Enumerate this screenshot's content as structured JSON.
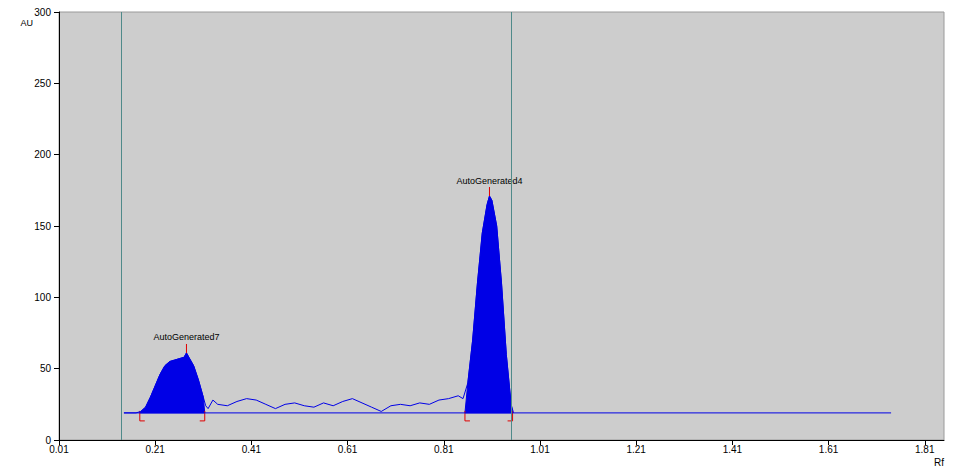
{
  "chart_data": {
    "type": "line",
    "x_label": "Rf",
    "y_label": "AU",
    "color": "#0000e6",
    "x": [
      0.145,
      0.17,
      0.18,
      0.19,
      0.2,
      0.21,
      0.22,
      0.23,
      0.24,
      0.25,
      0.26,
      0.27,
      0.275,
      0.28,
      0.29,
      0.3,
      0.31,
      0.315,
      0.32,
      0.33,
      0.34,
      0.36,
      0.38,
      0.4,
      0.42,
      0.44,
      0.46,
      0.48,
      0.5,
      0.52,
      0.54,
      0.56,
      0.58,
      0.6,
      0.62,
      0.64,
      0.66,
      0.68,
      0.7,
      0.72,
      0.74,
      0.76,
      0.78,
      0.8,
      0.82,
      0.84,
      0.85,
      0.86,
      0.87,
      0.88,
      0.89,
      0.9,
      0.905,
      0.91,
      0.92,
      0.93,
      0.94,
      0.95,
      0.955
    ],
    "values": [
      19,
      19,
      20,
      23,
      30,
      38,
      46,
      52,
      55,
      56,
      57,
      58,
      61,
      58,
      52,
      42,
      30,
      24,
      22,
      28,
      25,
      24,
      27,
      29,
      28,
      25,
      22,
      25,
      26,
      24,
      23,
      26,
      24,
      27,
      29,
      26,
      23,
      20,
      24,
      25,
      24,
      26,
      25,
      28,
      29,
      31,
      29,
      40,
      70,
      110,
      145,
      165,
      171,
      168,
      150,
      110,
      60,
      25,
      19
    ],
    "baseline": {
      "value": 19,
      "x": [
        0.145,
        1.74
      ]
    },
    "peaks": [
      {
        "label": "AutoGenerated7",
        "x": 0.275,
        "y": 61,
        "start": 0.178,
        "end": 0.313
      },
      {
        "label": "AutoGenerated4",
        "x": 0.905,
        "y": 171,
        "start": 0.854,
        "end": 0.953
      }
    ],
    "markers": [
      0.145,
      0.953
    ],
    "xlim": [
      0.01,
      1.85
    ],
    "xticks": [
      0.01,
      0.21,
      0.41,
      0.61,
      0.81,
      1.01,
      1.21,
      1.41,
      1.61,
      1.81
    ],
    "ylim": [
      0,
      300
    ],
    "yticks": [
      0,
      50,
      100,
      150,
      200,
      250,
      300
    ],
    "grid": false
  }
}
